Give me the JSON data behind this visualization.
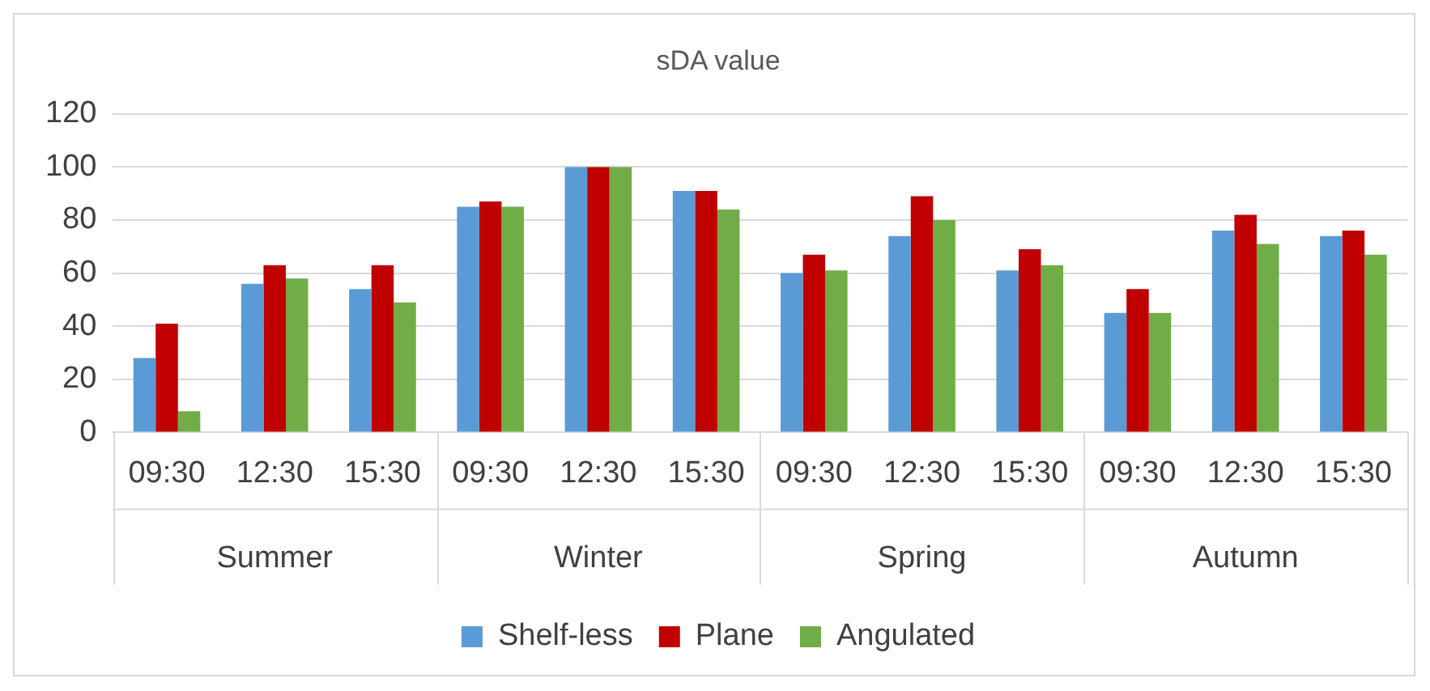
{
  "chart_data": {
    "type": "bar",
    "title": "sDA value",
    "categories": [
      "09:30",
      "12:30",
      "15:30",
      "09:30",
      "12:30",
      "15:30",
      "09:30",
      "12:30",
      "15:30",
      "09:30",
      "12:30",
      "15:30"
    ],
    "annotations": [
      "Summer",
      "Winter",
      "Spring",
      "Autumn"
    ],
    "series": [
      {
        "name": "Shelf-less",
        "color": "#5b9bd5",
        "values": [
          28,
          56,
          54,
          85,
          100,
          91,
          60,
          74,
          61,
          45,
          76,
          74
        ]
      },
      {
        "name": "Plane",
        "color": "#c00000",
        "values": [
          41,
          63,
          63,
          87,
          100,
          91,
          67,
          89,
          69,
          54,
          82,
          76
        ]
      },
      {
        "name": "Angulated",
        "color": "#70ad47",
        "values": [
          8,
          58,
          49,
          85,
          100,
          84,
          61,
          80,
          63,
          45,
          71,
          67
        ]
      }
    ],
    "ylim": [
      0,
      120
    ],
    "yticks": [
      0,
      20,
      40,
      60,
      80,
      100,
      120
    ],
    "grid": "y",
    "legend": "bottom"
  }
}
